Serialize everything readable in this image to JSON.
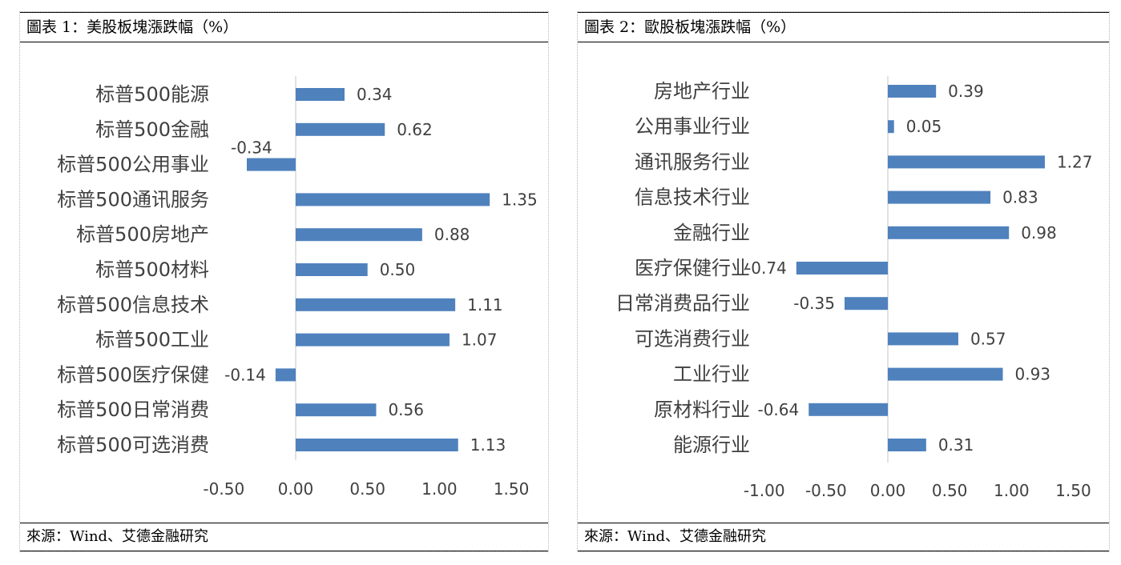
{
  "colors": {
    "bar": "#4f81bd",
    "axis": "#d9d9d9"
  },
  "panels": [
    {
      "title": "圖表 1：美股板塊漲跌幅（%）",
      "source": "來源：Wind、艾德金融研究"
    },
    {
      "title": "圖表 2：歐股板塊漲跌幅（%）",
      "source": "來源：Wind、艾德金融研究"
    }
  ],
  "chart_data": [
    {
      "type": "bar",
      "orientation": "horizontal",
      "categories": [
        "标普500能源",
        "标普500金融",
        "标普500公用事业",
        "标普500通讯服务",
        "标普500房地产",
        "标普500材料",
        "标普500信息技术",
        "标普500工业",
        "标普500医疗保健",
        "标普500日常消费",
        "标普500可选消费"
      ],
      "values": [
        0.34,
        0.62,
        -0.34,
        1.35,
        0.88,
        0.5,
        1.11,
        1.07,
        -0.14,
        0.56,
        1.13
      ],
      "data_labels": [
        "0.34",
        "0.62",
        "-0.34",
        "1.35",
        "0.88",
        "0.50",
        "1.11",
        "1.07",
        "-0.14",
        "0.56",
        "1.13"
      ],
      "xlim": [
        -0.5,
        1.5
      ],
      "xticks": [
        "-0.50",
        "0.00",
        "0.50",
        "1.00",
        "1.50"
      ],
      "grid": false,
      "legend": "none"
    },
    {
      "type": "bar",
      "orientation": "horizontal",
      "categories": [
        "房地产行业",
        "公用事业行业",
        "通讯服务行业",
        "信息技术行业",
        "金融行业",
        "医疗保健行业",
        "日常消费品行业",
        "可选消费行业",
        "工业行业",
        "原材料行业",
        "能源行业"
      ],
      "values": [
        0.39,
        0.05,
        1.27,
        0.83,
        0.98,
        -0.74,
        -0.35,
        0.57,
        0.93,
        -0.64,
        0.31
      ],
      "data_labels": [
        "0.39",
        "0.05",
        "1.27",
        "0.83",
        "0.98",
        "-0.74",
        "-0.35",
        "0.57",
        "0.93",
        "-0.64",
        "0.31"
      ],
      "xlim": [
        -1.0,
        1.5
      ],
      "xticks": [
        "-1.00",
        "-0.50",
        "0.00",
        "0.50",
        "1.00",
        "1.50"
      ],
      "grid": false,
      "legend": "none"
    }
  ]
}
